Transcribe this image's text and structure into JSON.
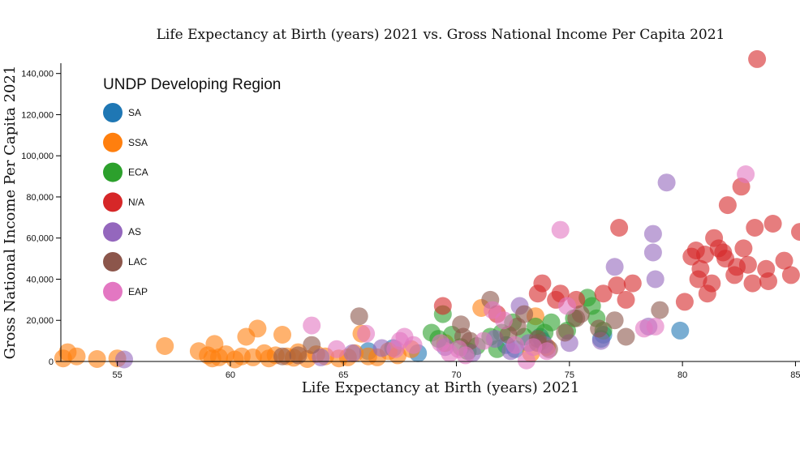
{
  "chart_data": {
    "type": "scatter",
    "title": "Life Expectancy at Birth (years) 2021 vs. Gross National Income Per Capita 2021",
    "xlabel": "Life Expectancy at Birth (years) 2021",
    "ylabel": "Gross National Income Per Capita 2021",
    "xlim": [
      52.5,
      85.2
    ],
    "ylim": [
      0,
      145000
    ],
    "x_ticks": [
      55,
      60,
      65,
      70,
      75,
      80,
      85
    ],
    "x_tick_labels": [
      "55",
      "60",
      "65",
      "70",
      "75",
      "80",
      "85"
    ],
    "y_ticks": [
      0,
      20000,
      40000,
      60000,
      80000,
      100000,
      120000,
      140000
    ],
    "y_tick_labels": [
      "0",
      "20,000",
      "40,000",
      "60,000",
      "80,000",
      "100,000",
      "120,000",
      "140,000"
    ],
    "legend": {
      "title": "UNDP Developing Region",
      "placement": "top-left",
      "entries": [
        "SA",
        "SSA",
        "ECA",
        "N/A",
        "AS",
        "LAC",
        "EAP"
      ]
    },
    "colors": {
      "SA": "#1f77b4",
      "SSA": "#ff7f0e",
      "ECA": "#2ca02c",
      "N/A": "#d62728",
      "AS": "#9467bd",
      "LAC": "#8c564b",
      "EAP": "#e377c2"
    },
    "series": [
      {
        "name": "SA",
        "points": [
          [
            66.1,
            5000
          ],
          [
            67.2,
            6500
          ],
          [
            68.3,
            4000
          ],
          [
            72.2,
            8000
          ],
          [
            73.7,
            12000
          ],
          [
            76.4,
            11000
          ],
          [
            76.5,
            13000
          ],
          [
            79.9,
            15000
          ],
          [
            73.8,
            10000
          ],
          [
            72.6,
            6000
          ]
        ]
      },
      {
        "name": "SSA",
        "points": [
          [
            52.6,
            1500
          ],
          [
            52.8,
            4500
          ],
          [
            53.2,
            2500
          ],
          [
            54.1,
            1200
          ],
          [
            55,
            1500
          ],
          [
            57.1,
            7500
          ],
          [
            58.6,
            5000
          ],
          [
            59,
            3000
          ],
          [
            59.2,
            1500
          ],
          [
            59.3,
            8500
          ],
          [
            59.5,
            2000
          ],
          [
            59.8,
            3500
          ],
          [
            60.2,
            1000
          ],
          [
            60.5,
            2500
          ],
          [
            60.7,
            12000
          ],
          [
            61,
            2000
          ],
          [
            61.2,
            16000
          ],
          [
            61.5,
            4000
          ],
          [
            61.7,
            1500
          ],
          [
            62,
            3000
          ],
          [
            62.3,
            13000
          ],
          [
            62.5,
            2500
          ],
          [
            62.8,
            1800
          ],
          [
            63,
            4500
          ],
          [
            63.4,
            1200
          ],
          [
            63.8,
            3500
          ],
          [
            64.2,
            2500
          ],
          [
            64.8,
            1500
          ],
          [
            65.2,
            2000
          ],
          [
            65.5,
            4000
          ],
          [
            65.8,
            13500
          ],
          [
            66.1,
            2500
          ],
          [
            66.5,
            2000
          ],
          [
            67,
            5000
          ],
          [
            67.4,
            3000
          ],
          [
            68,
            6000
          ],
          [
            69.5,
            9000
          ],
          [
            71.1,
            26000
          ],
          [
            73.3,
            4000
          ],
          [
            73.5,
            22000
          ],
          [
            74,
            7000
          ]
        ]
      },
      {
        "name": "ECA",
        "points": [
          [
            68.9,
            14000
          ],
          [
            69.2,
            11000
          ],
          [
            69.4,
            23000
          ],
          [
            69.8,
            13000
          ],
          [
            70.2,
            7000
          ],
          [
            70.5,
            5000
          ],
          [
            70.9,
            7500
          ],
          [
            71.5,
            12000
          ],
          [
            71.8,
            6000
          ],
          [
            72,
            14000
          ],
          [
            72.5,
            19000
          ],
          [
            73,
            12000
          ],
          [
            73.5,
            17000
          ],
          [
            73.9,
            14000
          ],
          [
            74.2,
            19000
          ],
          [
            74.9,
            15000
          ],
          [
            75.2,
            21000
          ],
          [
            75.8,
            31000
          ],
          [
            76,
            27000
          ],
          [
            76.2,
            21000
          ],
          [
            76.5,
            15000
          ]
        ]
      },
      {
        "name": "N/A",
        "points": [
          [
            69.4,
            27000
          ],
          [
            71.8,
            23000
          ],
          [
            73.6,
            33000
          ],
          [
            73.8,
            38000
          ],
          [
            74.4,
            30000
          ],
          [
            74.6,
            33000
          ],
          [
            75.3,
            30000
          ],
          [
            76.5,
            33000
          ],
          [
            77.1,
            37000
          ],
          [
            77.2,
            65000
          ],
          [
            77.5,
            30000
          ],
          [
            77.8,
            38000
          ],
          [
            80.1,
            29000
          ],
          [
            80.4,
            51000
          ],
          [
            80.6,
            54000
          ],
          [
            80.7,
            40000
          ],
          [
            80.8,
            45000
          ],
          [
            81,
            52000
          ],
          [
            81.1,
            33000
          ],
          [
            81.3,
            38000
          ],
          [
            81.4,
            60000
          ],
          [
            81.6,
            55000
          ],
          [
            81.8,
            53000
          ],
          [
            81.9,
            50000
          ],
          [
            82,
            76000
          ],
          [
            82.3,
            42000
          ],
          [
            82.4,
            46000
          ],
          [
            82.6,
            85000
          ],
          [
            82.7,
            55000
          ],
          [
            82.9,
            47000
          ],
          [
            83.1,
            38000
          ],
          [
            83.2,
            65000
          ],
          [
            83.3,
            147000
          ],
          [
            83.7,
            45000
          ],
          [
            83.8,
            39000
          ],
          [
            84,
            67000
          ],
          [
            84.5,
            49000
          ],
          [
            84.8,
            42000
          ],
          [
            85.2,
            63000
          ]
        ]
      },
      {
        "name": "AS",
        "points": [
          [
            55.3,
            1000
          ],
          [
            64,
            2000
          ],
          [
            65.4,
            4000
          ],
          [
            66.7,
            6500
          ],
          [
            69.5,
            7000
          ],
          [
            70.7,
            4000
          ],
          [
            71.7,
            11000
          ],
          [
            72.4,
            5000
          ],
          [
            72.8,
            27000
          ],
          [
            73.2,
            9000
          ],
          [
            73.9,
            8000
          ],
          [
            75,
            9000
          ],
          [
            76.4,
            10000
          ],
          [
            77,
            46000
          ],
          [
            78.7,
            53000
          ],
          [
            78.7,
            62000
          ],
          [
            78.8,
            40000
          ],
          [
            79.3,
            87000
          ],
          [
            78.5,
            17000
          ]
        ]
      },
      {
        "name": "LAC",
        "points": [
          [
            62.3,
            2500
          ],
          [
            63,
            3000
          ],
          [
            63.6,
            8000
          ],
          [
            65.7,
            22000
          ],
          [
            70.2,
            18000
          ],
          [
            70.3,
            12000
          ],
          [
            70.6,
            10000
          ],
          [
            71.5,
            30000
          ],
          [
            72.3,
            13000
          ],
          [
            72.7,
            17000
          ],
          [
            73,
            23000
          ],
          [
            73.6,
            11000
          ],
          [
            74.1,
            6000
          ],
          [
            74.8,
            14000
          ],
          [
            75.3,
            21000
          ],
          [
            75.5,
            23000
          ],
          [
            77,
            20000
          ],
          [
            77.5,
            12000
          ],
          [
            79,
            25000
          ],
          [
            73.6,
            9000
          ],
          [
            76.3,
            16000
          ]
        ]
      },
      {
        "name": "EAP",
        "points": [
          [
            63.6,
            17500
          ],
          [
            64.7,
            6000
          ],
          [
            66,
            13500
          ],
          [
            67.3,
            6000
          ],
          [
            67.5,
            10000
          ],
          [
            67.7,
            12000
          ],
          [
            68.1,
            8000
          ],
          [
            69.3,
            9000
          ],
          [
            69.7,
            4000
          ],
          [
            70.1,
            6000
          ],
          [
            70.4,
            3000
          ],
          [
            71.2,
            10000
          ],
          [
            71.6,
            25000
          ],
          [
            72.1,
            20000
          ],
          [
            72.6,
            8000
          ],
          [
            73.1,
            500
          ],
          [
            73.4,
            7000
          ],
          [
            74,
            5000
          ],
          [
            74.6,
            64000
          ],
          [
            74.9,
            27000
          ],
          [
            78.3,
            16000
          ],
          [
            78.8,
            17000
          ],
          [
            82.8,
            91000
          ]
        ]
      }
    ]
  }
}
